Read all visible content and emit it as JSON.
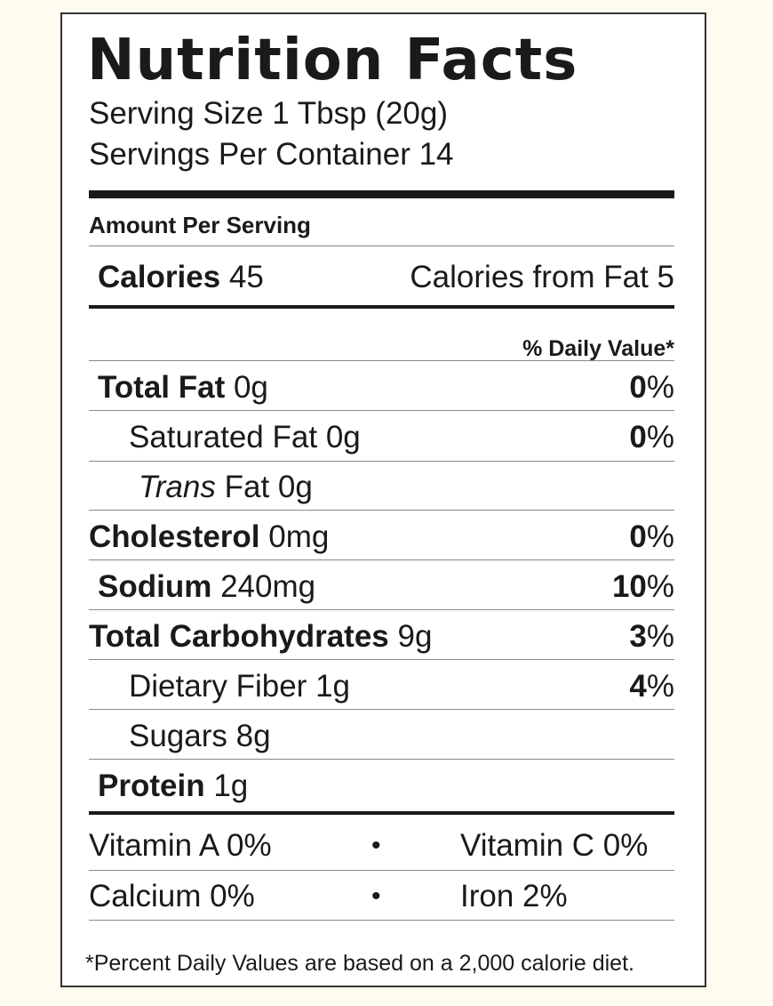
{
  "label": {
    "title": "Nutrition Facts",
    "serving_size": "Serving Size 1 Tbsp (20g)",
    "servings_per_container": "Servings Per Container 14",
    "amount_per_serving": "Amount Per Serving",
    "calories": {
      "label": "Calories",
      "value": "45",
      "from_fat": "Calories from Fat 5"
    },
    "daily_value_header": "% Daily Value*",
    "nutrients": [
      {
        "name": "Total Fat",
        "amount": "0g",
        "dv": "0",
        "dv_unit": "%"
      },
      {
        "name": "Saturated Fat",
        "amount": "0g",
        "dv": "0",
        "dv_unit": "%"
      },
      {
        "name_italic": "Trans",
        "name": "Fat",
        "amount": "0g"
      },
      {
        "name": "Cholesterol",
        "amount": "0mg",
        "dv": "0",
        "dv_unit": "%"
      },
      {
        "name": "Sodium",
        "amount": "240mg",
        "dv": "10",
        "dv_unit": "%"
      },
      {
        "name": "Total Carbohydrates",
        "amount": "9g",
        "dv": "3",
        "dv_unit": "%"
      },
      {
        "name": "Dietary Fiber",
        "amount": "1g",
        "dv": "4",
        "dv_unit": "%"
      },
      {
        "name": "Sugars",
        "amount": "8g"
      },
      {
        "name": "Protein",
        "amount": "1g"
      }
    ],
    "vitamins": [
      {
        "left": "Vitamin A  0%",
        "sep": "•",
        "right": "Vitamin C  0%"
      },
      {
        "left": "Calcium  0%",
        "sep": "•",
        "right": "Iron  2%"
      }
    ],
    "footnote": "*Percent Daily Values are based on a 2,000 calorie diet."
  }
}
